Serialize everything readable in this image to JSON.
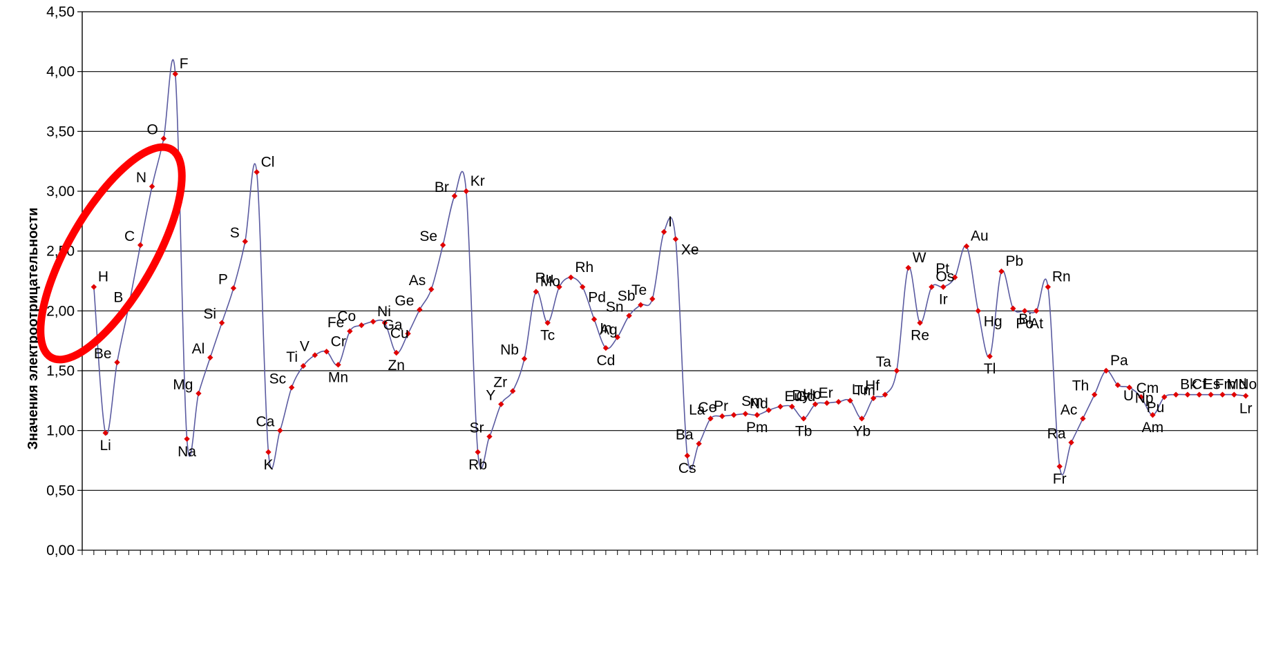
{
  "chart_data": {
    "type": "line",
    "title": "",
    "xlabel": "",
    "ylabel": "Значения электроотрицательности",
    "ylim": [
      0,
      4.5
    ],
    "y_ticks": [
      "0,00",
      "0,50",
      "1,00",
      "1,50",
      "2,00",
      "2,50",
      "3,00",
      "3,50",
      "4,00",
      "4,50"
    ],
    "grid": true,
    "legend": "none",
    "colors": {
      "line": "#5a5aa0",
      "marker": "#e00000",
      "annotation": "#ff0000",
      "grid": "#000000"
    },
    "annotation": {
      "shape": "ellipse",
      "color": "#ff0000",
      "encloses": [
        "H",
        "B",
        "C",
        "N",
        "O"
      ]
    },
    "series": [
      {
        "categories": [
          "H",
          "Li",
          "Be",
          "B",
          "C",
          "N",
          "O",
          "F",
          "Na",
          "Mg",
          "Al",
          "Si",
          "P",
          "S",
          "Cl",
          "K",
          "Ca",
          "Sc",
          "Ti",
          "V",
          "Cr",
          "Mn",
          "Fe",
          "Co",
          "Ni",
          "Cu",
          "Zn",
          "Ga",
          "Ge",
          "As",
          "Se",
          "Br",
          "Kr",
          "Rb",
          "Sr",
          "Y",
          "Zr",
          "Nb",
          "Mo",
          "Tc",
          "Ru",
          "Rh",
          "Pd",
          "Ag",
          "Cd",
          "In",
          "Sn",
          "Sb",
          "Te",
          "I",
          "Xe",
          "Cs",
          "Ba",
          "La",
          "Ce",
          "Pr",
          "Nd",
          "Pm",
          "Sm",
          "Eu",
          "Gd",
          "Tb",
          "Dy",
          "Ho",
          "Er",
          "Tm",
          "Yb",
          "Lu",
          "Hf",
          "Ta",
          "W",
          "Re",
          "Os",
          "Ir",
          "Pt",
          "Au",
          "Hg",
          "Tl",
          "Pb",
          "Bi",
          "Po",
          "At",
          "Rn",
          "Fr",
          "Ra",
          "Ac",
          "Th",
          "Pa",
          "U",
          "Np",
          "Pu",
          "Am",
          "Cm",
          "Bk",
          "Cf",
          "Es",
          "Fm",
          "Md",
          "No",
          "Lr"
        ],
        "values": [
          2.2,
          0.98,
          1.57,
          2.04,
          2.55,
          3.04,
          3.44,
          3.98,
          0.93,
          1.31,
          1.61,
          1.9,
          2.19,
          2.58,
          3.16,
          0.82,
          1.0,
          1.36,
          1.54,
          1.63,
          1.66,
          1.55,
          1.83,
          1.88,
          1.91,
          1.9,
          1.65,
          1.81,
          2.01,
          2.18,
          2.55,
          2.96,
          3.0,
          0.82,
          0.95,
          1.22,
          1.33,
          1.6,
          2.16,
          1.9,
          2.2,
          2.28,
          2.2,
          1.93,
          1.69,
          1.78,
          1.96,
          2.05,
          2.1,
          2.66,
          2.6,
          0.79,
          0.89,
          1.1,
          1.12,
          1.13,
          1.14,
          1.13,
          1.17,
          1.2,
          1.2,
          1.1,
          1.22,
          1.23,
          1.24,
          1.25,
          1.1,
          1.27,
          1.3,
          1.5,
          2.36,
          1.9,
          2.2,
          2.2,
          2.28,
          2.54,
          2.0,
          1.62,
          2.33,
          2.02,
          2.0,
          2.0,
          2.2,
          0.7,
          0.9,
          1.1,
          1.3,
          1.5,
          1.38,
          1.36,
          1.28,
          1.13,
          1.28,
          1.3,
          1.3,
          1.3,
          1.3,
          1.3,
          1.3,
          1.29
        ]
      }
    ]
  }
}
